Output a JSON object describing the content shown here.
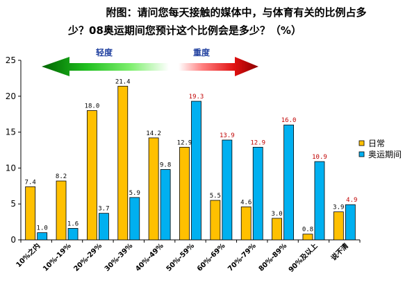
{
  "chart_data": {
    "type": "bar",
    "title_lines": [
      "附图：请问您每天接触的媒体中，与体育有关的比例占多",
      "少？08奥运期间您预计这个比例会是多少？（%）"
    ],
    "categories": [
      "10%之内",
      "10%-19%",
      "20%-29%",
      "30%-39%",
      "40%-49%",
      "50%-59%",
      "60%-69%",
      "70%-79%",
      "80%-89%",
      "90%及以上",
      "说不清"
    ],
    "series": [
      {
        "name": "日常",
        "color": "#ffc000",
        "label_color": "#000000",
        "values": [
          7.4,
          8.2,
          18.0,
          21.4,
          14.2,
          12.9,
          5.5,
          4.6,
          3.0,
          0.8,
          3.9
        ]
      },
      {
        "name": "奥运期间",
        "color": "#00b0f0",
        "values": [
          1.0,
          1.6,
          3.7,
          5.9,
          9.8,
          19.3,
          13.9,
          12.9,
          16.0,
          10.9,
          4.9
        ],
        "label_colors": [
          "#000000",
          "#000000",
          "#000000",
          "#000000",
          "#000000",
          "#c00000",
          "#c00000",
          "#c00000",
          "#c00000",
          "#c00000",
          "#c00000"
        ]
      }
    ],
    "ylim": [
      0,
      25
    ],
    "yticks": [
      0,
      5,
      10,
      15,
      20,
      25
    ],
    "legend_position": "right",
    "grid": false,
    "annotations": {
      "light_label": "轻度",
      "heavy_label": "重度",
      "light_color": "#00a000",
      "heavy_color": "#e00000"
    }
  }
}
